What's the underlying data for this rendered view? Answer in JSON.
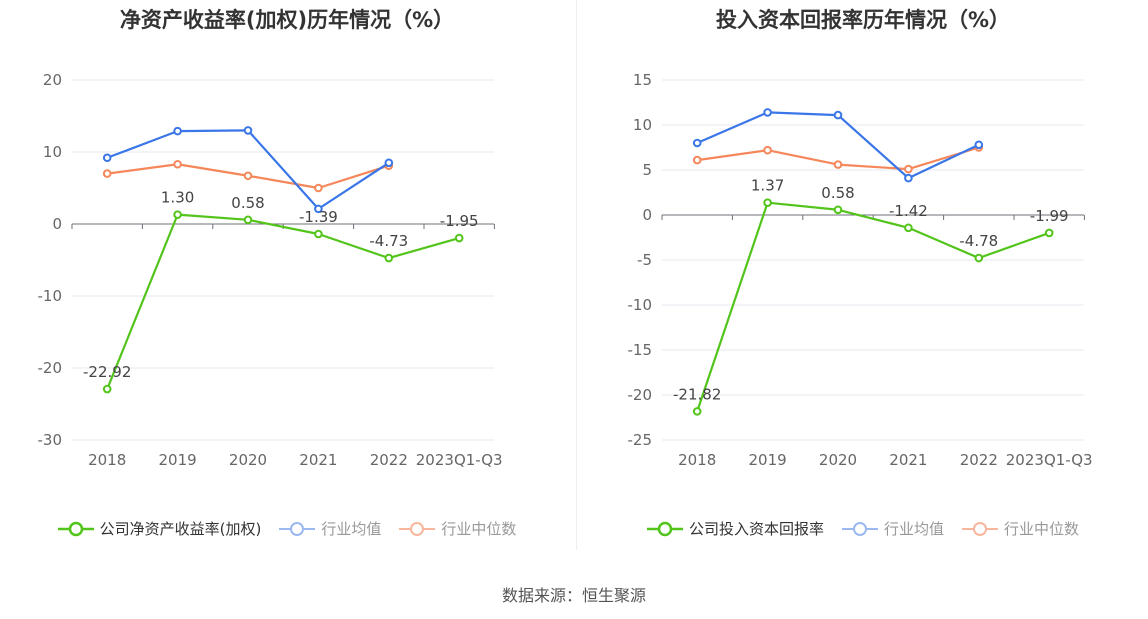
{
  "charts": [
    {
      "title": "净资产收益率(加权)历年情况（%）",
      "legend": [
        "公司净资产收益率(加权)",
        "行业均值",
        "行业中位数"
      ]
    },
    {
      "title": "投入资本回报率历年情况（%）",
      "legend": [
        "公司投入资本回报率",
        "行业均值",
        "行业中位数"
      ]
    }
  ],
  "source": "数据来源：恒生聚源",
  "chart_data": [
    {
      "type": "line",
      "title": "净资产收益率(加权)历年情况（%）",
      "categories": [
        "2018",
        "2019",
        "2020",
        "2021",
        "2022",
        "2023Q1-Q3"
      ],
      "ylim": [
        -30,
        20
      ],
      "yticks": [
        20,
        10,
        0,
        -10,
        -20,
        -30
      ],
      "grid": true,
      "legend_position": "bottom",
      "series": [
        {
          "name": "公司净资产收益率(加权)",
          "color": "#52c41a",
          "values": [
            -22.92,
            1.3,
            0.58,
            -1.39,
            -4.73,
            -1.95
          ],
          "labels": [
            "-22.92",
            "1.30",
            "0.58",
            "-1.39",
            "-4.73",
            "-1.95"
          ]
        },
        {
          "name": "行业均值",
          "color": "#3a76e8",
          "values": [
            9.2,
            12.9,
            13.0,
            2.1,
            8.5,
            null
          ]
        },
        {
          "name": "行业中位数",
          "color": "#f5875a",
          "values": [
            7.0,
            8.3,
            6.7,
            5.0,
            8.1,
            null
          ]
        }
      ]
    },
    {
      "type": "line",
      "title": "投入资本回报率历年情况（%）",
      "categories": [
        "2018",
        "2019",
        "2020",
        "2021",
        "2022",
        "2023Q1-Q3"
      ],
      "ylim": [
        -25,
        15
      ],
      "yticks": [
        15,
        10,
        5,
        0,
        -5,
        -10,
        -15,
        -20,
        -25
      ],
      "grid": true,
      "legend_position": "bottom",
      "series": [
        {
          "name": "公司投入资本回报率",
          "color": "#52c41a",
          "values": [
            -21.82,
            1.37,
            0.58,
            -1.42,
            -4.78,
            -1.99
          ],
          "labels": [
            "-21.82",
            "1.37",
            "0.58",
            "-1.42",
            "-4.78",
            "-1.99"
          ]
        },
        {
          "name": "行业均值",
          "color": "#3a76e8",
          "values": [
            8.0,
            11.4,
            11.1,
            4.1,
            7.8,
            null
          ]
        },
        {
          "name": "行业中位数",
          "color": "#f5875a",
          "values": [
            6.1,
            7.2,
            5.6,
            5.1,
            7.5,
            null
          ]
        }
      ]
    }
  ]
}
